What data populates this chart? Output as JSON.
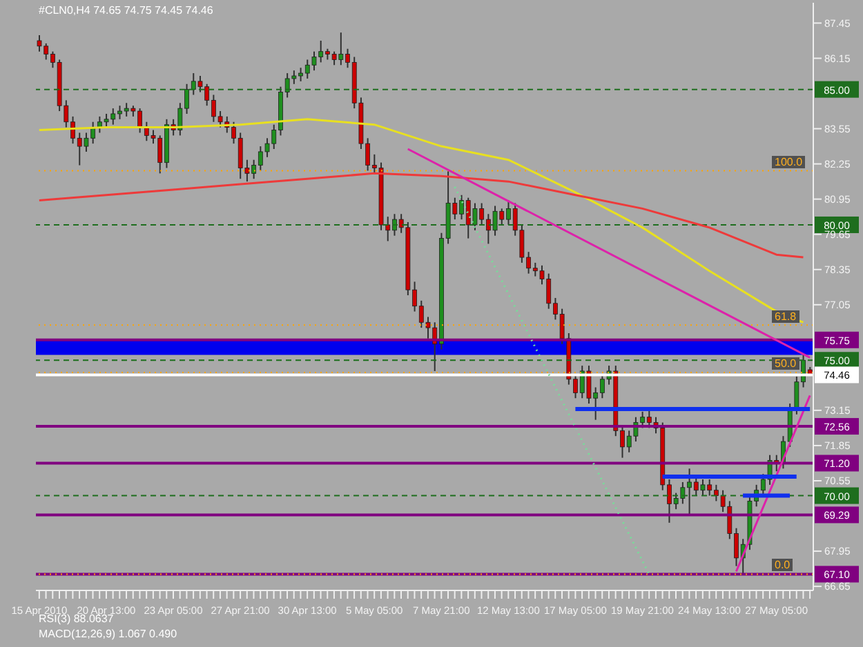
{
  "chart_data": {
    "type": "candlestick",
    "title": "#CLN0,H4 74.65 74.75 74.45 74.46",
    "annotations": [
      "RSI(3) 88.0637",
      "MACD(12,26,9) 1.067 0.490",
      {
        "text": "100.0",
        "y": 82
      },
      {
        "text": "61.8",
        "y": 76.3
      },
      {
        "text": "50.0",
        "y": 74.55
      },
      {
        "text": "0.0",
        "y": 67.1
      }
    ],
    "categories": [
      "15 Apr 2010",
      null,
      null,
      null,
      null,
      null,
      null,
      null,
      null,
      null,
      "20 Apr 13:00",
      null,
      null,
      null,
      null,
      null,
      null,
      null,
      null,
      null,
      "23 Apr 05:00",
      null,
      null,
      null,
      null,
      null,
      null,
      null,
      null,
      null,
      "27 Apr 21:00",
      null,
      null,
      null,
      null,
      null,
      null,
      null,
      null,
      null,
      "30 Apr 13:00",
      null,
      null,
      null,
      null,
      null,
      null,
      null,
      null,
      null,
      "5 May 05:00",
      null,
      null,
      null,
      null,
      null,
      null,
      null,
      null,
      null,
      "7 May 21:00",
      null,
      null,
      null,
      null,
      null,
      null,
      null,
      null,
      null,
      "12 May 13:00",
      null,
      null,
      null,
      null,
      null,
      null,
      null,
      null,
      null,
      "17 May 05:00",
      null,
      null,
      null,
      null,
      null,
      null,
      null,
      null,
      null,
      "19 May 21:00",
      null,
      null,
      null,
      null,
      null,
      null,
      null,
      null,
      null,
      "24 May 13:00",
      null,
      null,
      null,
      null,
      null,
      null,
      null,
      null,
      null,
      "27 May 05:00",
      null,
      null,
      null,
      null,
      null
    ],
    "ohlc": [
      [
        86.8,
        87.0,
        86.4,
        86.6
      ],
      [
        86.6,
        86.7,
        86.1,
        86.3
      ],
      [
        86.3,
        86.4,
        85.8,
        86.0
      ],
      [
        86.0,
        86.1,
        84.2,
        84.4
      ],
      [
        84.4,
        84.6,
        83.6,
        83.8
      ],
      [
        83.8,
        84.0,
        83.0,
        83.2
      ],
      [
        83.2,
        83.4,
        82.2,
        82.9
      ],
      [
        82.9,
        83.4,
        82.7,
        83.2
      ],
      [
        83.2,
        83.8,
        83.0,
        83.6
      ],
      [
        83.6,
        84.0,
        83.4,
        83.8
      ],
      [
        83.8,
        84.1,
        83.6,
        83.9
      ],
      [
        83.9,
        84.3,
        83.7,
        84.1
      ],
      [
        84.1,
        84.4,
        83.9,
        84.2
      ],
      [
        84.2,
        84.5,
        84.0,
        84.3
      ],
      [
        84.3,
        84.4,
        84.0,
        84.2
      ],
      [
        84.2,
        84.3,
        83.4,
        83.6
      ],
      [
        83.6,
        83.8,
        83.1,
        83.3
      ],
      [
        83.3,
        83.5,
        83.0,
        83.2
      ],
      [
        83.2,
        83.3,
        81.9,
        82.3
      ],
      [
        82.3,
        83.9,
        82.1,
        83.7
      ],
      [
        83.7,
        83.9,
        83.3,
        83.5
      ],
      [
        83.5,
        84.5,
        83.3,
        84.3
      ],
      [
        84.3,
        85.2,
        84.1,
        85.0
      ],
      [
        85.0,
        85.6,
        84.8,
        85.3
      ],
      [
        85.3,
        85.5,
        84.9,
        85.1
      ],
      [
        85.1,
        85.2,
        84.4,
        84.6
      ],
      [
        84.6,
        84.8,
        83.8,
        84.0
      ],
      [
        84.0,
        84.2,
        83.6,
        83.8
      ],
      [
        83.8,
        84.0,
        83.4,
        83.6
      ],
      [
        83.6,
        83.8,
        83.0,
        83.2
      ],
      [
        83.2,
        83.4,
        81.7,
        82.1
      ],
      [
        82.1,
        82.4,
        81.6,
        81.9
      ],
      [
        81.9,
        82.4,
        81.7,
        82.2
      ],
      [
        82.2,
        82.9,
        82.0,
        82.7
      ],
      [
        82.7,
        83.2,
        82.5,
        83.0
      ],
      [
        83.0,
        83.7,
        82.8,
        83.5
      ],
      [
        83.5,
        85.1,
        83.3,
        84.9
      ],
      [
        84.9,
        85.6,
        84.7,
        85.4
      ],
      [
        85.4,
        85.7,
        85.2,
        85.5
      ],
      [
        85.5,
        85.8,
        85.3,
        85.6
      ],
      [
        85.6,
        86.1,
        85.4,
        85.9
      ],
      [
        85.9,
        86.4,
        85.7,
        86.2
      ],
      [
        86.2,
        86.8,
        86.0,
        86.4
      ],
      [
        86.4,
        86.5,
        86.1,
        86.3
      ],
      [
        86.3,
        86.4,
        85.9,
        86.1
      ],
      [
        86.1,
        87.1,
        85.9,
        86.3
      ],
      [
        86.3,
        86.5,
        85.8,
        86.0
      ],
      [
        86.0,
        86.2,
        84.3,
        84.5
      ],
      [
        84.5,
        84.7,
        82.8,
        83.0
      ],
      [
        83.0,
        83.2,
        82.0,
        82.2
      ],
      [
        82.2,
        82.6,
        81.9,
        82.1
      ],
      [
        82.1,
        82.3,
        79.8,
        80.0
      ],
      [
        80.0,
        80.3,
        79.4,
        79.8
      ],
      [
        79.8,
        80.4,
        79.6,
        80.2
      ],
      [
        80.2,
        80.4,
        79.7,
        79.9
      ],
      [
        79.9,
        80.1,
        77.4,
        77.6
      ],
      [
        77.6,
        77.9,
        76.8,
        77.0
      ],
      [
        77.0,
        77.2,
        76.2,
        76.4
      ],
      [
        76.4,
        76.6,
        75.8,
        76.2
      ],
      [
        76.2,
        76.4,
        74.6,
        75.6
      ],
      [
        75.6,
        79.7,
        75.4,
        79.5
      ],
      [
        79.5,
        82.0,
        79.3,
        80.8
      ],
      [
        80.8,
        81.0,
        80.2,
        80.4
      ],
      [
        80.4,
        81.1,
        80.2,
        80.9
      ],
      [
        80.9,
        81.0,
        79.5,
        80.0
      ],
      [
        80.0,
        80.8,
        79.8,
        80.6
      ],
      [
        80.6,
        80.8,
        80.0,
        80.2
      ],
      [
        80.2,
        80.4,
        79.3,
        79.8
      ],
      [
        79.8,
        80.7,
        79.6,
        80.5
      ],
      [
        80.5,
        80.6,
        80.0,
        80.2
      ],
      [
        80.2,
        80.9,
        80.0,
        80.6
      ],
      [
        80.6,
        80.8,
        79.6,
        79.8
      ],
      [
        79.8,
        80.0,
        78.6,
        78.8
      ],
      [
        78.8,
        79.0,
        78.2,
        78.4
      ],
      [
        78.4,
        78.6,
        78.1,
        78.3
      ],
      [
        78.3,
        78.5,
        77.8,
        78.0
      ],
      [
        78.0,
        78.2,
        76.9,
        77.1
      ],
      [
        77.1,
        77.3,
        76.5,
        76.7
      ],
      [
        76.7,
        76.9,
        75.6,
        75.8
      ],
      [
        75.8,
        76.0,
        74.1,
        74.3
      ],
      [
        74.3,
        74.5,
        73.6,
        73.8
      ],
      [
        73.8,
        74.8,
        73.6,
        74.6
      ],
      [
        74.6,
        74.8,
        73.4,
        73.6
      ],
      [
        73.6,
        74.0,
        72.8,
        73.8
      ],
      [
        73.8,
        74.5,
        73.6,
        74.3
      ],
      [
        74.3,
        74.8,
        74.1,
        74.6
      ],
      [
        74.6,
        74.8,
        72.2,
        72.4
      ],
      [
        72.4,
        72.6,
        71.4,
        71.8
      ],
      [
        71.8,
        72.4,
        71.6,
        72.2
      ],
      [
        72.2,
        72.9,
        72.0,
        72.7
      ],
      [
        72.7,
        73.1,
        72.5,
        72.9
      ],
      [
        72.9,
        73.2,
        72.5,
        72.7
      ],
      [
        72.7,
        72.9,
        72.3,
        72.5
      ],
      [
        72.5,
        72.7,
        70.2,
        70.4
      ],
      [
        70.4,
        70.6,
        69.0,
        69.7
      ],
      [
        69.7,
        70.1,
        69.5,
        69.9
      ],
      [
        69.9,
        70.5,
        69.7,
        70.3
      ],
      [
        70.3,
        71.0,
        69.3,
        70.5
      ],
      [
        70.5,
        70.7,
        70.0,
        70.2
      ],
      [
        70.2,
        70.6,
        70.0,
        70.4
      ],
      [
        70.4,
        70.6,
        70.0,
        70.2
      ],
      [
        70.2,
        70.4,
        69.8,
        70.0
      ],
      [
        70.0,
        70.2,
        69.4,
        69.6
      ],
      [
        69.6,
        69.8,
        68.4,
        68.6
      ],
      [
        68.6,
        68.8,
        67.4,
        67.7
      ],
      [
        67.7,
        68.4,
        67.1,
        68.2
      ],
      [
        68.2,
        70.0,
        68.0,
        69.8
      ],
      [
        69.8,
        70.4,
        69.6,
        70.2
      ],
      [
        70.2,
        70.8,
        70.0,
        70.6
      ],
      [
        70.6,
        71.5,
        70.4,
        71.3
      ],
      [
        71.3,
        71.5,
        70.9,
        71.2
      ],
      [
        71.2,
        72.2,
        71.0,
        72.0
      ],
      [
        72.0,
        73.4,
        71.8,
        73.2
      ],
      [
        73.2,
        74.4,
        73.0,
        74.2
      ],
      [
        74.2,
        75.2,
        74.0,
        75.0
      ],
      [
        74.65,
        74.75,
        74.45,
        74.46
      ]
    ],
    "series": [
      {
        "type": "line",
        "color": "#e8e020",
        "values": [
          83.5,
          null,
          null,
          null,
          null,
          null,
          null,
          null,
          null,
          null,
          83.6,
          null,
          null,
          null,
          null,
          null,
          null,
          null,
          null,
          null,
          83.6,
          null,
          null,
          null,
          null,
          null,
          null,
          null,
          null,
          null,
          83.7,
          null,
          null,
          null,
          null,
          null,
          null,
          null,
          null,
          null,
          83.9,
          null,
          null,
          null,
          null,
          null,
          null,
          null,
          null,
          null,
          83.7,
          null,
          null,
          null,
          null,
          null,
          null,
          null,
          null,
          null,
          82.9,
          null,
          null,
          null,
          null,
          null,
          null,
          null,
          null,
          null,
          82.4,
          null,
          null,
          null,
          null,
          null,
          null,
          null,
          null,
          null,
          81.2,
          null,
          null,
          null,
          null,
          null,
          null,
          null,
          null,
          null,
          79.9,
          null,
          null,
          null,
          null,
          null,
          null,
          null,
          null,
          null,
          78.3,
          null,
          null,
          null,
          null,
          null,
          null,
          null,
          null,
          null,
          76.8,
          null,
          null,
          null,
          76.4,
          null
        ]
      },
      {
        "type": "line",
        "color": "#ee3a3a",
        "values": [
          80.9,
          null,
          null,
          null,
          null,
          null,
          null,
          null,
          null,
          null,
          81.1,
          null,
          null,
          null,
          null,
          null,
          null,
          null,
          null,
          null,
          81.3,
          null,
          null,
          null,
          null,
          null,
          null,
          null,
          null,
          null,
          81.5,
          null,
          null,
          null,
          null,
          null,
          null,
          null,
          null,
          null,
          81.7,
          null,
          null,
          null,
          null,
          null,
          null,
          null,
          null,
          null,
          81.9,
          null,
          null,
          null,
          null,
          null,
          null,
          null,
          null,
          null,
          81.8,
          null,
          null,
          null,
          null,
          null,
          null,
          null,
          null,
          null,
          81.6,
          null,
          null,
          null,
          null,
          null,
          null,
          null,
          null,
          null,
          81.1,
          null,
          null,
          null,
          null,
          null,
          null,
          null,
          null,
          null,
          80.6,
          null,
          null,
          null,
          null,
          null,
          null,
          null,
          null,
          null,
          79.9,
          null,
          null,
          null,
          null,
          null,
          null,
          null,
          null,
          null,
          78.9,
          null,
          null,
          null,
          78.8,
          null
        ]
      },
      {
        "type": "line",
        "color": "#dd22aa",
        "values": [
          null,
          null,
          null,
          null,
          null,
          null,
          null,
          null,
          null,
          null,
          null,
          null,
          null,
          null,
          null,
          null,
          null,
          null,
          null,
          null,
          null,
          null,
          null,
          null,
          null,
          null,
          null,
          null,
          null,
          null,
          null,
          null,
          null,
          null,
          null,
          null,
          null,
          null,
          null,
          null,
          null,
          null,
          null,
          null,
          null,
          null,
          null,
          null,
          null,
          null,
          null,
          null,
          null,
          null,
          null,
          82.8,
          null,
          null,
          null,
          null,
          null,
          null,
          null,
          null,
          null,
          null,
          null,
          null,
          null,
          null,
          null,
          null,
          null,
          null,
          null,
          null,
          null,
          null,
          null,
          null,
          null,
          null,
          null,
          null,
          null,
          null,
          null,
          null,
          null,
          null,
          null,
          null,
          null,
          null,
          null,
          null,
          null,
          null,
          null,
          null,
          null,
          null,
          null,
          null,
          null,
          null,
          null,
          null,
          null,
          null,
          null,
          null,
          null,
          null,
          null,
          75.1
        ]
      },
      {
        "type": "line",
        "color": "#dd22aa",
        "values": [
          null,
          null,
          null,
          null,
          null,
          null,
          null,
          null,
          null,
          null,
          null,
          null,
          null,
          null,
          null,
          null,
          null,
          null,
          null,
          null,
          null,
          null,
          null,
          null,
          null,
          null,
          null,
          null,
          null,
          null,
          null,
          null,
          null,
          null,
          null,
          null,
          null,
          null,
          null,
          null,
          null,
          null,
          null,
          null,
          null,
          null,
          null,
          null,
          null,
          null,
          null,
          null,
          null,
          null,
          null,
          null,
          null,
          null,
          null,
          null,
          null,
          null,
          null,
          null,
          null,
          null,
          null,
          null,
          null,
          null,
          null,
          null,
          null,
          null,
          null,
          null,
          null,
          null,
          null,
          null,
          null,
          null,
          null,
          null,
          null,
          null,
          null,
          null,
          null,
          null,
          null,
          null,
          null,
          null,
          null,
          null,
          null,
          null,
          null,
          null,
          null,
          null,
          null,
          null,
          67.2,
          null,
          null,
          null,
          null,
          null,
          null,
          null,
          null,
          null,
          null,
          73.7
        ]
      },
      {
        "type": "line",
        "color": "#77dd99",
        "line_style": "dotted",
        "values": [
          null,
          null,
          null,
          null,
          null,
          null,
          null,
          null,
          null,
          null,
          null,
          null,
          null,
          null,
          null,
          null,
          null,
          null,
          null,
          null,
          null,
          null,
          null,
          null,
          null,
          null,
          null,
          null,
          null,
          null,
          null,
          null,
          null,
          null,
          null,
          null,
          null,
          null,
          null,
          null,
          null,
          null,
          null,
          null,
          null,
          null,
          null,
          null,
          null,
          null,
          null,
          null,
          null,
          null,
          null,
          null,
          null,
          null,
          null,
          null,
          null,
          null,
          81.4,
          null,
          null,
          null,
          null,
          null,
          null,
          null,
          null,
          null,
          null,
          null,
          null,
          null,
          null,
          null,
          null,
          null,
          null,
          null,
          null,
          null,
          null,
          null,
          null,
          null,
          null,
          null,
          null,
          67.1,
          null,
          null,
          null,
          null,
          null,
          null,
          null,
          null,
          null,
          null,
          null,
          null,
          null,
          null,
          null,
          null,
          null,
          null,
          null,
          null,
          null,
          null,
          null,
          null
        ]
      },
      {
        "type": "line",
        "color": "#1030ee",
        "values": [
          null,
          null,
          null,
          null,
          null,
          null,
          null,
          null,
          null,
          null,
          null,
          null,
          null,
          null,
          null,
          null,
          null,
          null,
          null,
          null,
          null,
          null,
          null,
          null,
          null,
          null,
          null,
          null,
          null,
          null,
          null,
          null,
          null,
          null,
          null,
          null,
          null,
          null,
          null,
          null,
          null,
          null,
          null,
          null,
          null,
          null,
          null,
          null,
          null,
          null,
          null,
          null,
          null,
          null,
          null,
          null,
          null,
          null,
          null,
          null,
          null,
          null,
          null,
          null,
          null,
          null,
          null,
          null,
          null,
          null,
          null,
          null,
          null,
          null,
          null,
          null,
          null,
          null,
          null,
          null,
          73.2,
          null,
          null,
          null,
          null,
          null,
          null,
          null,
          null,
          null,
          null,
          null,
          null,
          null,
          null,
          null,
          null,
          null,
          null,
          null,
          null,
          null,
          null,
          null,
          null,
          null,
          null,
          null,
          null,
          null,
          null,
          null,
          null,
          null,
          null,
          73.2
        ]
      },
      {
        "type": "line",
        "color": "#1030ee",
        "values": [
          null,
          null,
          null,
          null,
          null,
          null,
          null,
          null,
          null,
          null,
          null,
          null,
          null,
          null,
          null,
          null,
          null,
          null,
          null,
          null,
          null,
          null,
          null,
          null,
          null,
          null,
          null,
          null,
          null,
          null,
          null,
          null,
          null,
          null,
          null,
          null,
          null,
          null,
          null,
          null,
          null,
          null,
          null,
          null,
          null,
          null,
          null,
          null,
          null,
          null,
          null,
          null,
          null,
          null,
          null,
          null,
          null,
          null,
          null,
          null,
          null,
          null,
          null,
          null,
          null,
          null,
          null,
          null,
          null,
          null,
          null,
          null,
          null,
          null,
          null,
          null,
          null,
          null,
          null,
          null,
          null,
          null,
          null,
          null,
          null,
          null,
          null,
          null,
          null,
          null,
          null,
          null,
          null,
          70.7,
          null,
          null,
          null,
          null,
          null,
          null,
          null,
          null,
          null,
          null,
          null,
          null,
          null,
          null,
          null,
          null,
          null,
          null,
          null,
          70.7,
          null,
          null
        ]
      },
      {
        "type": "line",
        "color": "#1030ee",
        "values": [
          null,
          null,
          null,
          null,
          null,
          null,
          null,
          null,
          null,
          null,
          null,
          null,
          null,
          null,
          null,
          null,
          null,
          null,
          null,
          null,
          null,
          null,
          null,
          null,
          null,
          null,
          null,
          null,
          null,
          null,
          null,
          null,
          null,
          null,
          null,
          null,
          null,
          null,
          null,
          null,
          null,
          null,
          null,
          null,
          null,
          null,
          null,
          null,
          null,
          null,
          null,
          null,
          null,
          null,
          null,
          null,
          null,
          null,
          null,
          null,
          null,
          null,
          null,
          null,
          null,
          null,
          null,
          null,
          null,
          null,
          null,
          null,
          null,
          null,
          null,
          null,
          null,
          null,
          null,
          null,
          null,
          null,
          null,
          null,
          null,
          null,
          null,
          null,
          null,
          null,
          null,
          null,
          null,
          null,
          null,
          null,
          null,
          null,
          null,
          null,
          null,
          null,
          null,
          null,
          null,
          70.0,
          null,
          null,
          null,
          null,
          null,
          null,
          70.0,
          null,
          null,
          null
        ]
      }
    ],
    "ylim": [
      66.5,
      88.2
    ],
    "yticks": [
      87.45,
      86.15,
      83.55,
      82.25,
      80.95,
      79.65,
      78.35,
      77.05,
      73.15,
      71.85,
      70.55,
      67.95,
      66.65
    ],
    "bands": [
      {
        "axis": "y",
        "from": 75.2,
        "to": 75.75,
        "color": "#0000ee"
      }
    ],
    "ref_lines": [
      {
        "axis": "y",
        "value": 85,
        "label": "85.00",
        "color": "#1e6e1e",
        "line_style": "dashed"
      },
      {
        "axis": "y",
        "value": 80,
        "label": "80.00",
        "color": "#1e6e1e",
        "line_style": "dashed"
      },
      {
        "axis": "y",
        "value": 75,
        "label": "75.00",
        "color": "#1e6e1e",
        "line_style": "dashed"
      },
      {
        "axis": "y",
        "value": 70,
        "label": "70.00",
        "color": "#1e6e1e",
        "line_style": "dashed"
      },
      {
        "axis": "y",
        "value": 75.75,
        "label": "75.75",
        "color": "#800080",
        "line_style": "solid"
      },
      {
        "axis": "y",
        "value": 72.56,
        "label": "72.56",
        "color": "#800080",
        "line_style": "solid"
      },
      {
        "axis": "y",
        "value": 71.2,
        "label": "71.20",
        "color": "#800080",
        "line_style": "solid"
      },
      {
        "axis": "y",
        "value": 69.29,
        "label": "69.29",
        "color": "#800080",
        "line_style": "solid"
      },
      {
        "axis": "y",
        "value": 67.1,
        "label": "67.10",
        "color": "#800080",
        "line_style": "solid"
      },
      {
        "axis": "y",
        "value": 74.46,
        "label": "74.46",
        "color": "#ffffff",
        "line_style": "solid"
      },
      {
        "axis": "y",
        "value": 82,
        "color": "#ffa500",
        "line_style": "dotted"
      },
      {
        "axis": "y",
        "value": 76.3,
        "color": "#ffa500",
        "line_style": "dotted"
      },
      {
        "axis": "y",
        "value": 74.55,
        "color": "#ffa500",
        "line_style": "dotted"
      },
      {
        "axis": "y",
        "value": 67.1,
        "color": "#ffa500",
        "line_style": "dotted"
      }
    ]
  }
}
